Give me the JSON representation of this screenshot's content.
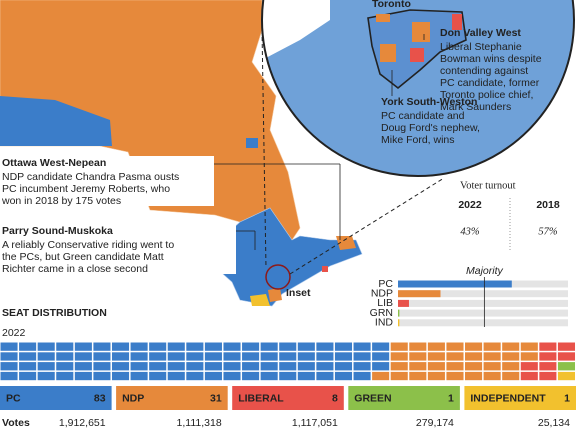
{
  "map": {
    "toronto_label": "Toronto",
    "inset_label": "Inset",
    "annotations": [
      {
        "title": "Don Valley West",
        "lines": [
          "Liberal Stephanie",
          "Bowman wins despite",
          "contending against",
          "PC candidate, former",
          "Toronto police chief,",
          "Mark Saunders"
        ]
      },
      {
        "title": "York South-Weston",
        "lines": [
          "PC candidate and",
          "Doug Ford's nephew,",
          "Mike Ford, wins"
        ]
      },
      {
        "title": "Ottawa West-Nepean",
        "lines": [
          "NDP candidate Chandra Pasma ousts",
          "PC incumbent Jeremy Roberts, who",
          "won in 2018 by 175 votes"
        ]
      },
      {
        "title": "Parry Sound-Muskoka",
        "lines": [
          "A reliably Conservative riding went to",
          "the PCs, but Green candidate Matt",
          "Richter came in a close second"
        ]
      }
    ]
  },
  "turnout": {
    "title": "Voter turnout",
    "items": [
      {
        "year": "2022",
        "label": "43%"
      },
      {
        "year": "2018",
        "label": "57%"
      }
    ]
  },
  "chart_data": {
    "type": "bar",
    "orientation": "horizontal",
    "categories": [
      "PC",
      "NDP",
      "LIB",
      "GRN",
      "IND"
    ],
    "values": [
      83,
      31,
      8,
      1,
      1
    ],
    "colors": [
      "#3b7dc9",
      "#e6893b",
      "#e8524a",
      "#8cc04a",
      "#f2c12e"
    ],
    "xlim": [
      0,
      124
    ],
    "reference": {
      "label": "Majority",
      "value": 63
    }
  },
  "seat_distribution": {
    "title": "SEAT DISTRIBUTION",
    "year": "2022",
    "votes_label": "Votes",
    "parties": [
      {
        "name": "PC",
        "seats": 83,
        "votes": "1,912,651",
        "color": "#3b7dc9"
      },
      {
        "name": "NDP",
        "seats": 31,
        "votes": "1,111,318",
        "color": "#e6893b"
      },
      {
        "name": "LIBERAL",
        "seats": 8,
        "votes": "1,117,051",
        "color": "#e8524a"
      },
      {
        "name": "GREEN",
        "seats": 1,
        "votes": "279,174",
        "color": "#8cc04a"
      },
      {
        "name": "INDEPENDENT",
        "seats": 1,
        "votes": "25,134",
        "color": "#f2c12e"
      }
    ]
  }
}
